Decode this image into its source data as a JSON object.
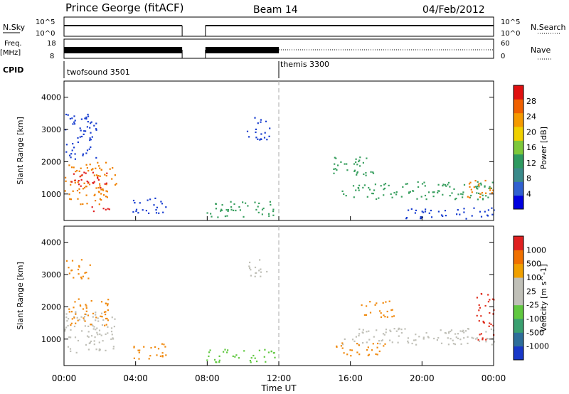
{
  "header": {
    "station": "Prince George (fitACF)",
    "beam": "Beam 14",
    "date": "04/Feb/2012"
  },
  "status_panels": {
    "nsky_label": "N.Sky",
    "nsky_ticks": [
      "10^5",
      "10^0"
    ],
    "nsearch_label": "N.Search",
    "nsearch_ticks": [
      "10^5",
      "10^0"
    ],
    "freq_label_line1": "Freq.",
    "freq_label_line2": "[MHz]",
    "freq_ticks": [
      "18",
      "8"
    ],
    "nave_label": "Nave",
    "nave_ticks": [
      "60",
      "0"
    ],
    "cpid_label": "CPID",
    "cpid_modes": [
      {
        "name": "twofsound 3501",
        "start_hour": 0,
        "end_hour": 12
      },
      {
        "name": "themis 3300",
        "start_hour": 12,
        "end_hour": 24
      }
    ],
    "data_gap_hours": [
      6.6,
      7.9
    ]
  },
  "chart_data": [
    {
      "type": "heatmap",
      "panel": "power",
      "title": "",
      "xlabel": "",
      "ylabel": "Slant Range [km]",
      "xlim": [
        0,
        24
      ],
      "ylim": [
        180,
        4500
      ],
      "yticks": [
        "1000",
        "2000",
        "3000",
        "4000"
      ],
      "colorbar_label": "Power [dB]",
      "colorbar_ticks": [
        "28",
        "24",
        "20",
        "16",
        "12",
        "8",
        "4"
      ],
      "colorbar_colors": [
        "#0000e0",
        "#3060d0",
        "#3a8a8a",
        "#2e9a60",
        "#7dc83a",
        "#f0d000",
        "#f59a00",
        "#f06000",
        "#e01010"
      ],
      "colors": {
        "low": "#1a3fd0",
        "mid": "#3aa060",
        "high": "#f08000",
        "peak": "#e02020"
      },
      "echo_regions": [
        {
          "t0": 0.0,
          "t1": 2.9,
          "r0": 700,
          "r1": 2000,
          "level": "high"
        },
        {
          "t0": 0.3,
          "t1": 2.5,
          "r0": 1200,
          "r1": 1700,
          "level": "peak"
        },
        {
          "t0": 0.0,
          "t1": 1.8,
          "r0": 2100,
          "r1": 3500,
          "level": "low"
        },
        {
          "t0": 1.5,
          "t1": 2.5,
          "r0": 450,
          "r1": 700,
          "level": "peak"
        },
        {
          "t0": 3.8,
          "t1": 5.8,
          "r0": 400,
          "r1": 900,
          "level": "low"
        },
        {
          "t0": 7.9,
          "t1": 11.8,
          "r0": 300,
          "r1": 800,
          "level": "mid"
        },
        {
          "t0": 10.2,
          "t1": 11.5,
          "r0": 2700,
          "r1": 3400,
          "level": "low"
        },
        {
          "t0": 15.5,
          "t1": 24.0,
          "r0": 850,
          "r1": 1400,
          "level": "mid"
        },
        {
          "t0": 15.0,
          "t1": 17.5,
          "r0": 1600,
          "r1": 2200,
          "level": "mid"
        },
        {
          "t0": 22.5,
          "t1": 24.0,
          "r0": 900,
          "r1": 1500,
          "level": "high"
        },
        {
          "t0": 19.0,
          "t1": 24.0,
          "r0": 250,
          "r1": 600,
          "level": "low"
        }
      ]
    },
    {
      "type": "heatmap",
      "panel": "velocity",
      "title": "",
      "xlabel": "Time UT",
      "ylabel": "Slant Range [km]",
      "xlim": [
        0,
        24
      ],
      "ylim": [
        180,
        4500
      ],
      "xticks": [
        "00:00",
        "04:00",
        "08:00",
        "12:00",
        "16:00",
        "20:00",
        "00:00"
      ],
      "yticks": [
        "1000",
        "2000",
        "3000",
        "4000"
      ],
      "colorbar_label": "Velocity [m s^-1]",
      "colorbar_ticks": [
        "1000",
        "500",
        "100",
        "25",
        "-25",
        "-100",
        "-500",
        "-1000"
      ],
      "colorbar_colors": [
        "#1838c8",
        "#2e6e9a",
        "#3aa070",
        "#60c840",
        "#c0c0b8",
        "#c0c0b8",
        "#f0a000",
        "#f07000",
        "#e02020"
      ],
      "colors": {
        "ground": "#c0c0b8",
        "away": "#f08a10",
        "toward": "#60c840",
        "strong_away": "#e03020"
      },
      "echo_regions": [
        {
          "t0": 0.0,
          "t1": 2.9,
          "r0": 600,
          "r1": 1900,
          "level": "ground"
        },
        {
          "t0": 0.2,
          "t1": 2.5,
          "r0": 1400,
          "r1": 2300,
          "level": "away"
        },
        {
          "t0": 0.0,
          "t1": 1.5,
          "r0": 2900,
          "r1": 3500,
          "level": "away"
        },
        {
          "t0": 3.8,
          "t1": 5.8,
          "r0": 400,
          "r1": 900,
          "level": "away"
        },
        {
          "t0": 7.9,
          "t1": 11.8,
          "r0": 300,
          "r1": 700,
          "level": "toward"
        },
        {
          "t0": 10.2,
          "t1": 11.3,
          "r0": 2900,
          "r1": 3500,
          "level": "ground"
        },
        {
          "t0": 15.5,
          "t1": 24.0,
          "r0": 850,
          "r1": 1400,
          "level": "ground"
        },
        {
          "t0": 16.5,
          "t1": 18.5,
          "r0": 1700,
          "r1": 2200,
          "level": "away"
        },
        {
          "t0": 15.0,
          "t1": 18.0,
          "r0": 500,
          "r1": 900,
          "level": "away"
        },
        {
          "t0": 23.0,
          "t1": 24.0,
          "r0": 1000,
          "r1": 2500,
          "level": "strong_away"
        }
      ]
    }
  ]
}
